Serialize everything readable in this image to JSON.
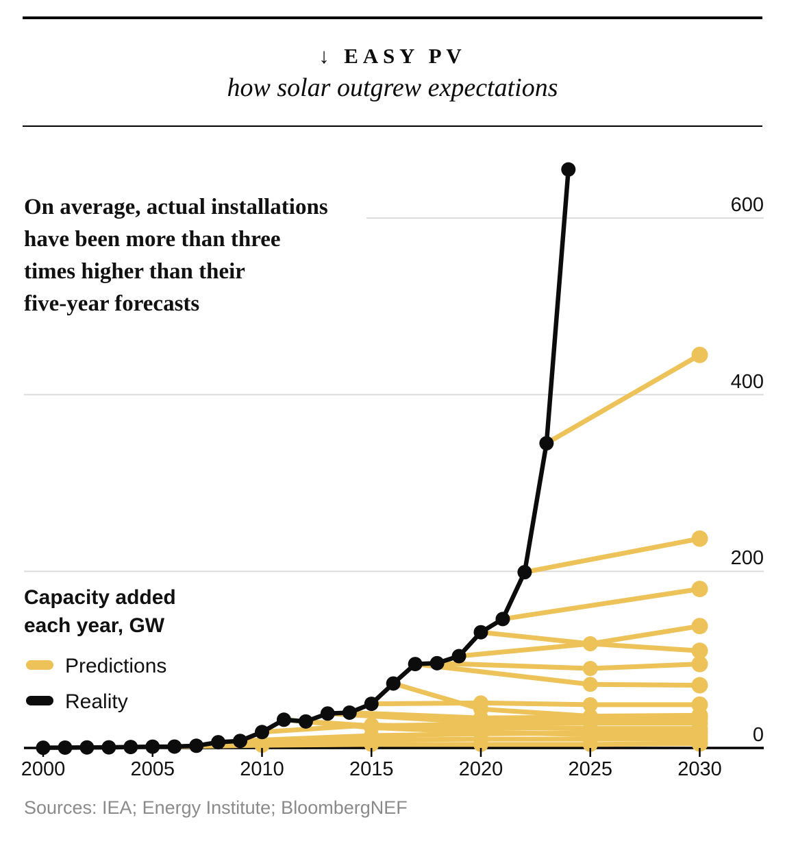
{
  "header": {
    "kicker": "↓ EASY PV",
    "subtitle": "how solar outgrew expectations"
  },
  "annotation": {
    "line1": "On average, actual installations",
    "line2": "have been more than three",
    "line3": "times higher than their",
    "line4": "five-year forecasts"
  },
  "axis_label": {
    "line1": "Capacity added",
    "line2": "each year, GW"
  },
  "legend": {
    "predictions_label": "Predictions",
    "reality_label": "Reality",
    "predictions_color": "#EDC258",
    "reality_color": "#0c0c0c"
  },
  "source_line": "Sources: IEA; Energy Institute; BloombergNEF",
  "colors": {
    "prediction_yellow": "#EDC258",
    "reality_black": "#0c0c0c",
    "gridline_gray": "#dcdcdc",
    "source_gray": "#8a8a8a"
  },
  "chart_data": {
    "type": "line",
    "title": "EASY PV — how solar outgrew expectations",
    "ylabel": "Capacity added each year, GW",
    "xlabel": "",
    "grid": "horizontal",
    "legend_position": "left",
    "xlim": [
      1999,
      2033
    ],
    "ylim": [
      0,
      675
    ],
    "x_ticks": [
      2000,
      2005,
      2010,
      2015,
      2020,
      2025,
      2030
    ],
    "y_ticks": [
      0,
      200,
      400,
      600
    ],
    "series": [
      {
        "name": "Reality",
        "color": "#0c0c0c",
        "points": [
          [
            2000,
            0.3
          ],
          [
            2001,
            0.4
          ],
          [
            2002,
            0.6
          ],
          [
            2003,
            0.7
          ],
          [
            2004,
            1.1
          ],
          [
            2005,
            1.5
          ],
          [
            2006,
            1.6
          ],
          [
            2007,
            2.5
          ],
          [
            2008,
            6.5
          ],
          [
            2009,
            8
          ],
          [
            2010,
            18
          ],
          [
            2011,
            32
          ],
          [
            2012,
            30
          ],
          [
            2013,
            39
          ],
          [
            2014,
            40
          ],
          [
            2015,
            50
          ],
          [
            2016,
            73
          ],
          [
            2017,
            95
          ],
          [
            2018,
            96
          ],
          [
            2019,
            104
          ],
          [
            2020,
            131
          ],
          [
            2021,
            146
          ],
          [
            2022,
            199
          ],
          [
            2023,
            345
          ],
          [
            2024,
            655
          ]
        ]
      },
      {
        "name": "Prediction made 2006",
        "color": "#EDC258",
        "points": [
          [
            2006,
            1.6
          ],
          [
            2010,
            3
          ],
          [
            2015,
            4
          ],
          [
            2020,
            4
          ],
          [
            2025,
            4
          ],
          [
            2030,
            5
          ]
        ]
      },
      {
        "name": "Prediction made 2008",
        "color": "#EDC258",
        "points": [
          [
            2008,
            6.5
          ],
          [
            2015,
            9
          ],
          [
            2020,
            10
          ],
          [
            2025,
            10
          ],
          [
            2030,
            10
          ]
        ]
      },
      {
        "name": "Prediction made 2009",
        "color": "#EDC258",
        "points": [
          [
            2009,
            8
          ],
          [
            2015,
            14
          ],
          [
            2020,
            16
          ],
          [
            2025,
            17
          ],
          [
            2030,
            18
          ]
        ]
      },
      {
        "name": "Prediction made 2010",
        "color": "#EDC258",
        "points": [
          [
            2010,
            18
          ],
          [
            2015,
            26
          ],
          [
            2020,
            23
          ],
          [
            2025,
            22
          ],
          [
            2030,
            22
          ]
        ]
      },
      {
        "name": "Prediction made 2011",
        "color": "#EDC258",
        "points": [
          [
            2011,
            32
          ],
          [
            2015,
            23
          ],
          [
            2020,
            18
          ],
          [
            2025,
            15
          ],
          [
            2030,
            14
          ]
        ]
      },
      {
        "name": "Prediction made 2012",
        "color": "#EDC258",
        "points": [
          [
            2012,
            30
          ],
          [
            2015,
            25
          ],
          [
            2020,
            27
          ],
          [
            2025,
            28
          ],
          [
            2030,
            28
          ]
        ]
      },
      {
        "name": "Prediction made 2013",
        "color": "#EDC258",
        "points": [
          [
            2013,
            39
          ],
          [
            2020,
            29
          ],
          [
            2025,
            31
          ],
          [
            2030,
            33
          ]
        ]
      },
      {
        "name": "Prediction made 2014",
        "color": "#EDC258",
        "points": [
          [
            2014,
            40
          ],
          [
            2020,
            34
          ],
          [
            2025,
            35
          ],
          [
            2030,
            36
          ]
        ]
      },
      {
        "name": "Prediction made 2015",
        "color": "#EDC258",
        "points": [
          [
            2015,
            50
          ],
          [
            2020,
            51
          ],
          [
            2025,
            49
          ],
          [
            2030,
            49
          ]
        ]
      },
      {
        "name": "Prediction made 2016",
        "color": "#EDC258",
        "points": [
          [
            2016,
            73
          ],
          [
            2020,
            44
          ],
          [
            2025,
            36
          ],
          [
            2030,
            37
          ]
        ]
      },
      {
        "name": "Prediction made 2017",
        "color": "#EDC258",
        "points": [
          [
            2017,
            95
          ],
          [
            2025,
            72
          ],
          [
            2030,
            71
          ]
        ]
      },
      {
        "name": "Prediction made 2018",
        "color": "#EDC258",
        "points": [
          [
            2018,
            96
          ],
          [
            2025,
            90
          ],
          [
            2030,
            95
          ]
        ]
      },
      {
        "name": "Prediction made 2019",
        "color": "#EDC258",
        "points": [
          [
            2019,
            104
          ],
          [
            2025,
            118
          ],
          [
            2030,
            138
          ]
        ]
      },
      {
        "name": "Prediction made 2020",
        "color": "#EDC258",
        "points": [
          [
            2020,
            131
          ],
          [
            2025,
            118
          ],
          [
            2030,
            110
          ]
        ]
      },
      {
        "name": "Prediction made 2021",
        "color": "#EDC258",
        "points": [
          [
            2021,
            146
          ],
          [
            2030,
            180
          ]
        ]
      },
      {
        "name": "Prediction made 2022",
        "color": "#EDC258",
        "points": [
          [
            2022,
            199
          ],
          [
            2030,
            237
          ]
        ]
      },
      {
        "name": "Prediction made 2023",
        "color": "#EDC258",
        "points": [
          [
            2023,
            345
          ],
          [
            2030,
            445
          ]
        ]
      }
    ]
  }
}
